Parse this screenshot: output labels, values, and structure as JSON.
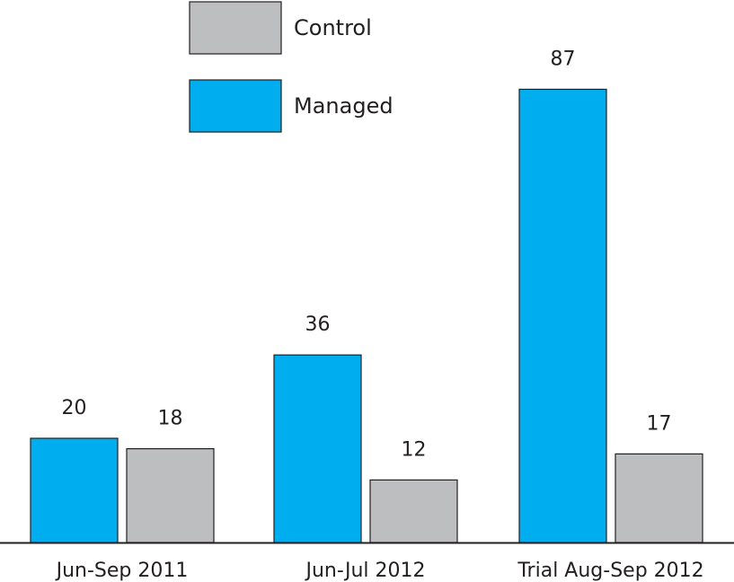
{
  "chart_data": {
    "type": "bar",
    "categories": [
      "Jun-Sep 2011",
      "Jun-Jul 2012",
      "Trial Aug-Sep 2012"
    ],
    "series": [
      {
        "name": "Managed",
        "values": [
          20,
          36,
          87
        ],
        "color": "#00aeef"
      },
      {
        "name": "Control",
        "values": [
          18,
          12,
          17
        ],
        "color": "#bcbec0"
      }
    ],
    "ylim": [
      0,
      100
    ],
    "grid": false,
    "legend_position": "top-left",
    "legend_order": [
      "Control",
      "Managed"
    ],
    "data_labels": true,
    "title": "",
    "xlabel": "",
    "ylabel": ""
  }
}
